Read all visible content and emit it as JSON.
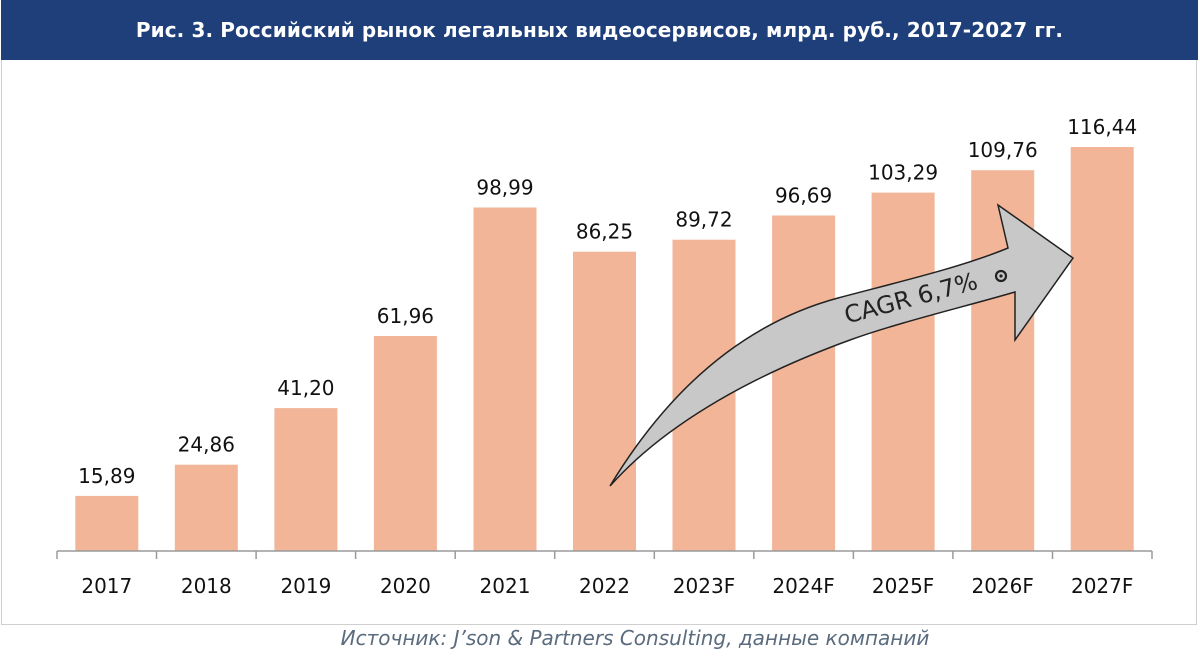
{
  "title": "Рис. 3. Российский рынок легальных видеосервисов, млрд. руб., 2017-2027 гг.",
  "source": "Источник: J’son & Partners Consulting, данные компаний",
  "colors": {
    "title_bg": "#1f3f7a",
    "bar": "#f2b598",
    "arrow_fill": "#c8c8c8",
    "arrow_stroke": "#222222",
    "source_text": "#5a6b7d"
  },
  "chart_data": {
    "type": "bar",
    "categories": [
      "2017",
      "2018",
      "2019",
      "2020",
      "2021",
      "2022",
      "2023F",
      "2024F",
      "2025F",
      "2026F",
      "2027F"
    ],
    "values": [
      15.89,
      24.86,
      41.2,
      61.96,
      98.99,
      86.25,
      89.72,
      96.69,
      103.29,
      109.76,
      116.44
    ],
    "value_labels": [
      "15,89",
      "24,86",
      "41,20",
      "61,96",
      "98,99",
      "86,25",
      "89,72",
      "96,69",
      "103,29",
      "109,76",
      "116,44"
    ],
    "ylim": [
      0,
      116.44
    ],
    "grid": false,
    "annotation": "CAGR 6,7%"
  }
}
